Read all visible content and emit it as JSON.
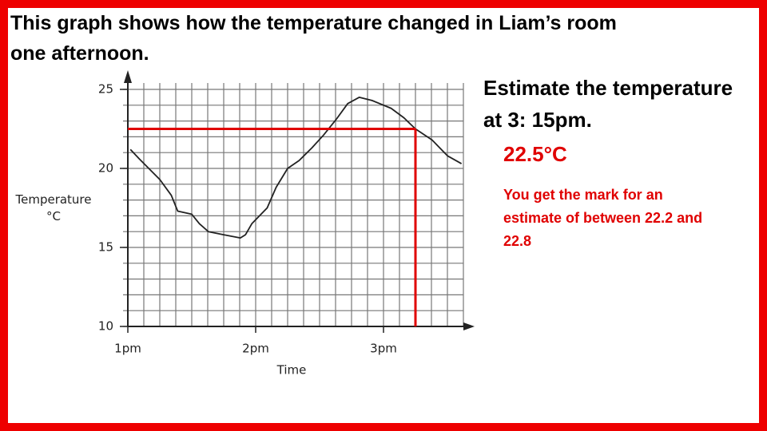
{
  "heading": "This graph shows how the temperature changed in Liam’s room one afternoon.",
  "question": "Estimate the temperature at 3: 15pm.",
  "answer": "22.5°C",
  "note": "You get the mark for an estimate of between 22.2 and 22.8",
  "chart_data": {
    "type": "line",
    "xlabel": "Time",
    "ylabel": "Temperature °C",
    "x": [
      1.02,
      1.09,
      1.25,
      1.34,
      1.39,
      1.5,
      1.56,
      1.63,
      1.75,
      1.88,
      1.92,
      1.97,
      2.03,
      2.09,
      2.16,
      2.25,
      2.34,
      2.44,
      2.53,
      2.63,
      2.72,
      2.81,
      2.91,
      3.06,
      3.16,
      3.25,
      3.38,
      3.5,
      3.61
    ],
    "values": [
      21.2,
      20.6,
      19.3,
      18.3,
      17.3,
      17.1,
      16.5,
      16.0,
      15.8,
      15.6,
      15.8,
      16.5,
      17.0,
      17.5,
      18.8,
      20.0,
      20.5,
      21.3,
      22.1,
      23.1,
      24.1,
      24.5,
      24.3,
      23.8,
      23.2,
      22.5,
      21.8,
      20.8,
      20.3
    ],
    "color": "#222222",
    "xlim": [
      1,
      3.625
    ],
    "ylim": [
      10,
      25
    ],
    "xticks": [
      {
        "value": 1,
        "label": "1pm"
      },
      {
        "value": 2,
        "label": "2pm"
      },
      {
        "value": 3,
        "label": "3pm"
      }
    ],
    "yticks": [
      10,
      15,
      20,
      25
    ],
    "xgrid": [
      1,
      1.125,
      1.25,
      1.375,
      1.5,
      1.625,
      1.75,
      1.875,
      2,
      2.125,
      2.25,
      2.375,
      2.5,
      2.625,
      2.75,
      2.875,
      3,
      3.125,
      3.25,
      3.375,
      3.5,
      3.625
    ],
    "ygrid": [
      10,
      11,
      12,
      13,
      14,
      15,
      16,
      17,
      18,
      19,
      20,
      21,
      22,
      23,
      24,
      25
    ],
    "grid": true,
    "reading": {
      "x": 3.25,
      "y": 22.5,
      "color": "#e00000"
    }
  }
}
